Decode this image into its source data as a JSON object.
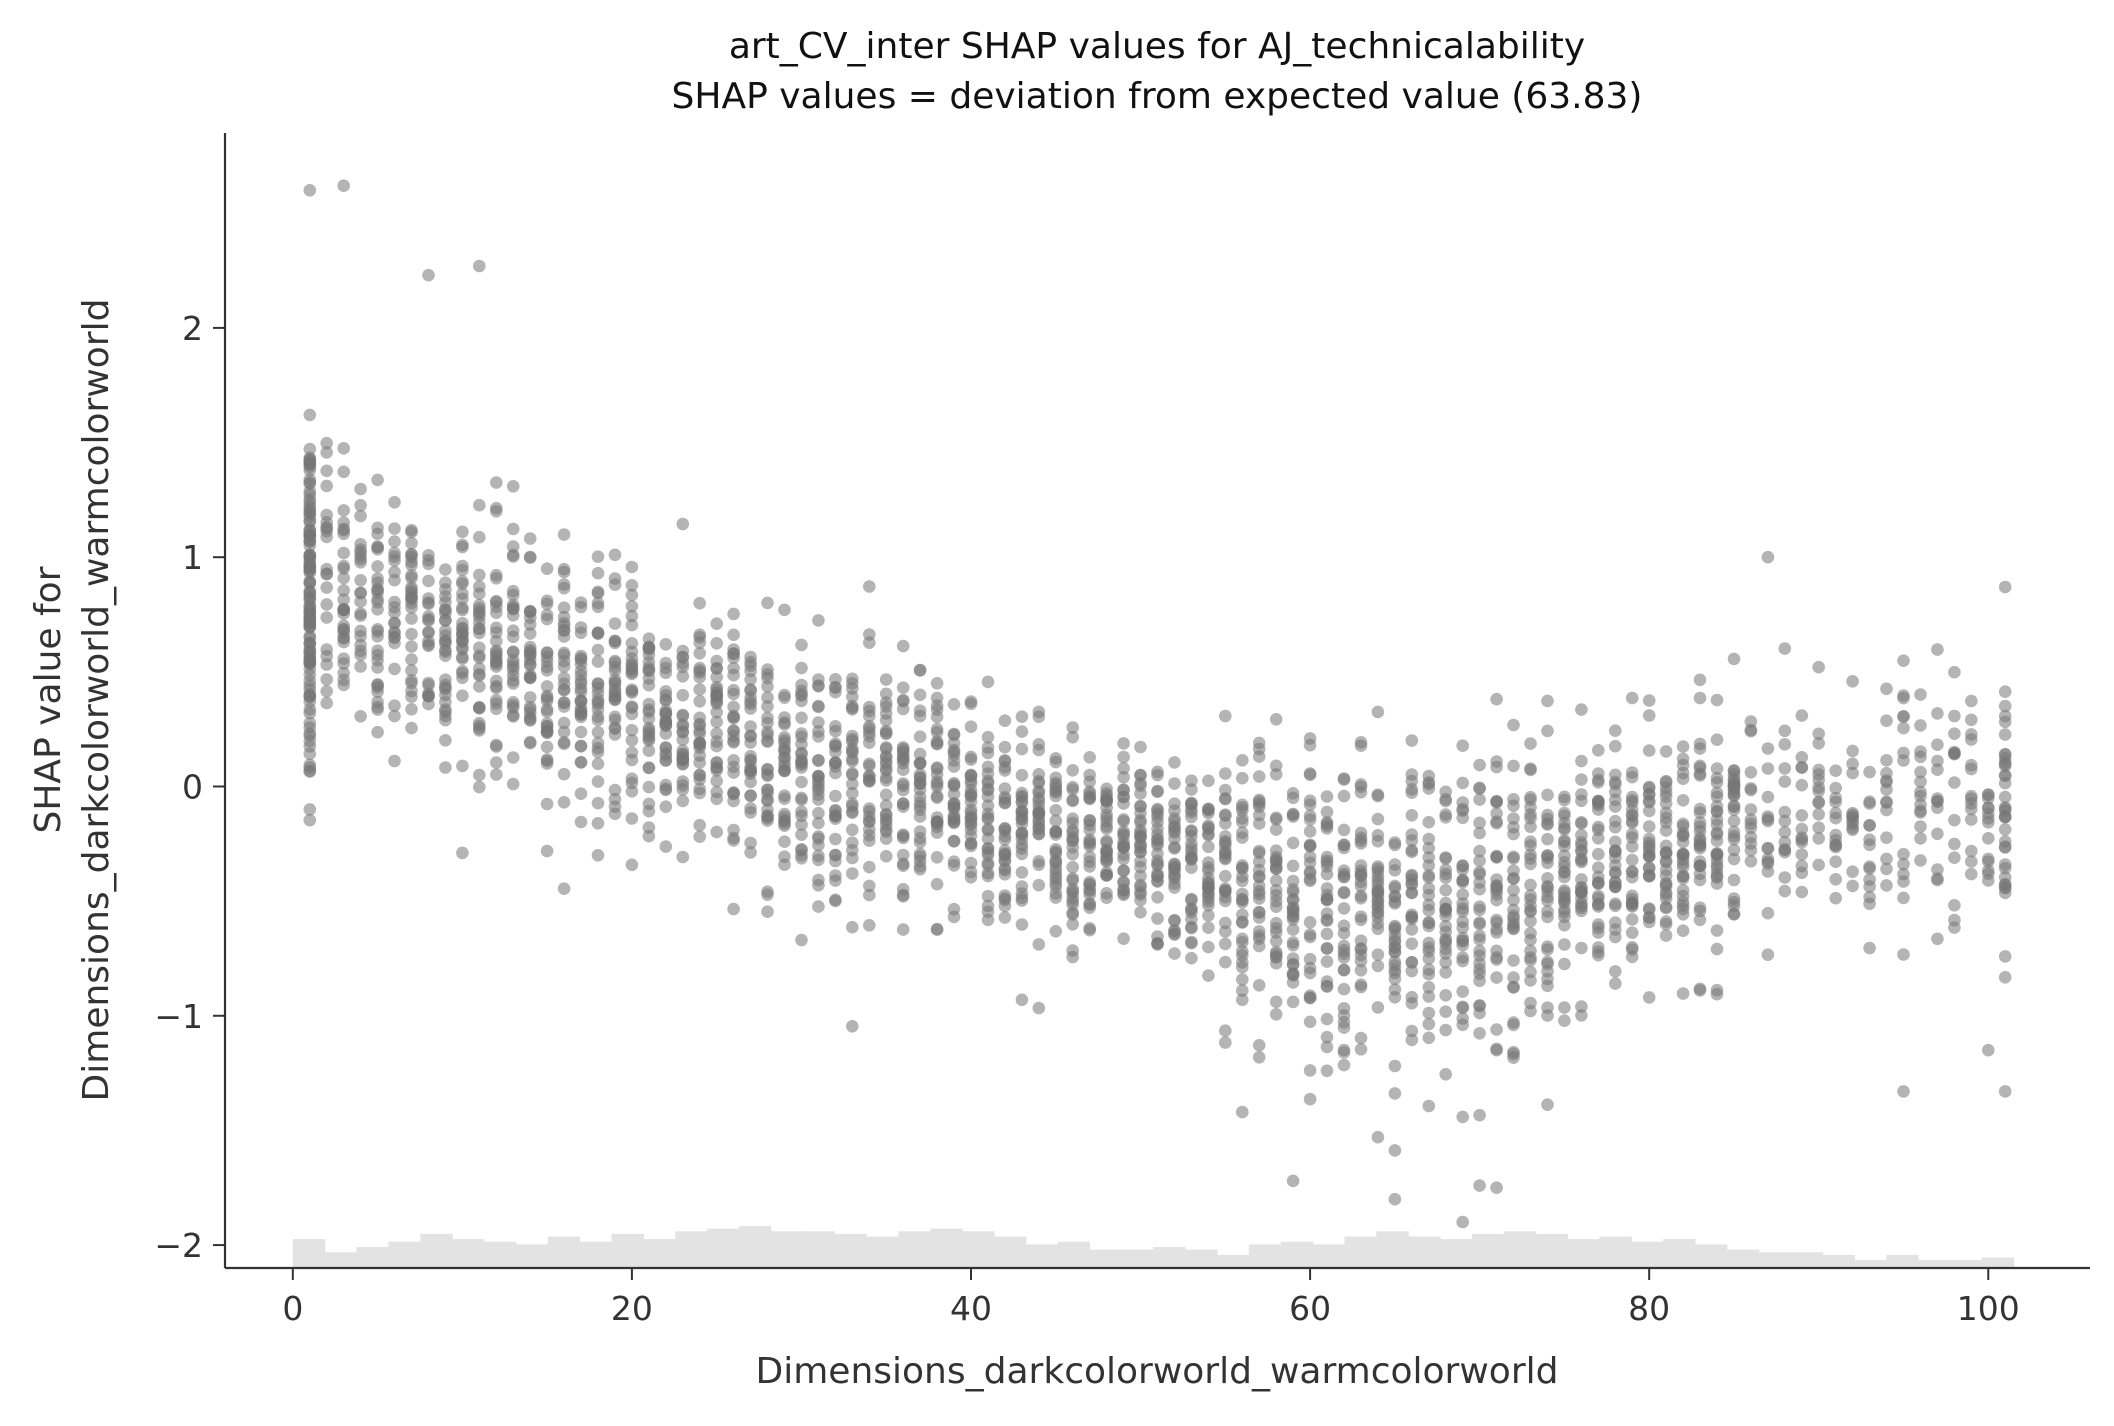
{
  "chart_data": {
    "type": "scatter",
    "title": "art_CV_inter SHAP values for AJ_technicalability",
    "subtitle": "SHAP values = deviation from expected value (63.83)",
    "xlabel": "Dimensions_darkcolorworld_warmcolorworld",
    "ylabel_line1": "SHAP value for",
    "ylabel_line2": "Dimensions_darkcolorworld_warmcolorworld",
    "xlim": [
      -4,
      106
    ],
    "ylim": [
      -2.1,
      2.85
    ],
    "x_ticks": [
      0,
      20,
      40,
      60,
      80,
      100
    ],
    "x_tick_labels": [
      "0",
      "20",
      "40",
      "60",
      "80",
      "100"
    ],
    "y_ticks": [
      -2,
      -1,
      0,
      1,
      2
    ],
    "y_tick_labels": [
      "−2",
      "−1",
      "0",
      "1",
      "2"
    ],
    "grid": false,
    "legend": "none",
    "colors": {
      "points": "#777777",
      "histogram": "#e3e3e3",
      "axis": "#333333"
    },
    "trend_points": [
      {
        "x": 1,
        "y": 0.85
      },
      {
        "x": 5,
        "y": 0.75
      },
      {
        "x": 10,
        "y": 0.65
      },
      {
        "x": 15,
        "y": 0.5
      },
      {
        "x": 20,
        "y": 0.35
      },
      {
        "x": 25,
        "y": 0.2
      },
      {
        "x": 30,
        "y": 0.1
      },
      {
        "x": 35,
        "y": 0.0
      },
      {
        "x": 40,
        "y": -0.1
      },
      {
        "x": 45,
        "y": -0.2
      },
      {
        "x": 50,
        "y": -0.3
      },
      {
        "x": 55,
        "y": -0.4
      },
      {
        "x": 60,
        "y": -0.5
      },
      {
        "x": 65,
        "y": -0.55
      },
      {
        "x": 70,
        "y": -0.5
      },
      {
        "x": 75,
        "y": -0.4
      },
      {
        "x": 80,
        "y": -0.3
      },
      {
        "x": 85,
        "y": -0.2
      },
      {
        "x": 90,
        "y": -0.15
      },
      {
        "x": 95,
        "y": -0.1
      },
      {
        "x": 101,
        "y": -0.05
      }
    ],
    "notable_points": [
      {
        "x": 1,
        "y": 2.6
      },
      {
        "x": 3,
        "y": 2.62
      },
      {
        "x": 11,
        "y": 2.27
      },
      {
        "x": 8,
        "y": 2.23
      },
      {
        "x": 1,
        "y": -0.1
      },
      {
        "x": 69,
        "y": -1.9
      },
      {
        "x": 65,
        "y": -1.8
      },
      {
        "x": 71,
        "y": -1.75
      },
      {
        "x": 59,
        "y": -1.72
      },
      {
        "x": 87,
        "y": 1.0
      },
      {
        "x": 101,
        "y": 0.87
      },
      {
        "x": 101,
        "y": -1.33
      },
      {
        "x": 95,
        "y": -1.33
      },
      {
        "x": 100,
        "y": -1.15
      },
      {
        "x": 56,
        "y": -1.42
      }
    ],
    "histogram_counts": [
      11,
      6,
      8,
      10,
      13,
      11,
      10,
      9,
      12,
      10,
      13,
      11,
      14,
      15,
      16,
      14,
      14,
      13,
      12,
      14,
      15,
      14,
      12,
      9,
      10,
      7,
      7,
      8,
      7,
      5,
      9,
      10,
      9,
      12,
      14,
      12,
      11,
      13,
      14,
      13,
      11,
      12,
      10,
      11,
      9,
      7,
      6,
      6,
      5,
      3,
      5,
      3,
      3,
      4
    ]
  }
}
